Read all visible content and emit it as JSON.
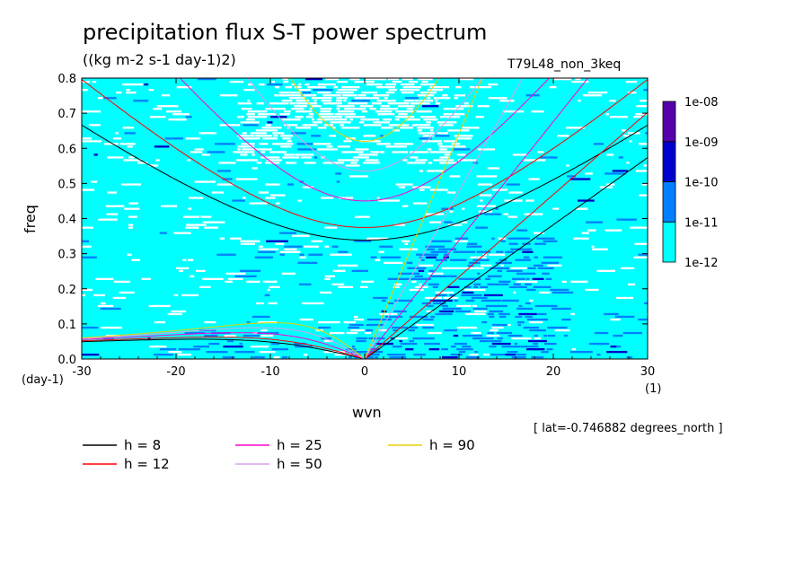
{
  "chart_data": {
    "type": "heatmap",
    "title": "precipitation flux S-T power spectrum",
    "units": "((kg m-2 s-1 day-1)2)",
    "run_name": "T79L48_non_3keq",
    "xlabel": "wvn",
    "ylabel": "freq",
    "x_unit": "(1)",
    "y_unit": "(day-1)",
    "xlim": [
      -30,
      30
    ],
    "ylim": [
      0,
      0.8
    ],
    "xticks": [
      "-30",
      "-20",
      "-10",
      "0",
      "10",
      "20",
      "30"
    ],
    "yticks": [
      "0.0",
      "0.1",
      "0.2",
      "0.3",
      "0.4",
      "0.5",
      "0.6",
      "0.7",
      "0.8"
    ],
    "annotation": "[ lat=-0.746882 degrees_north ]",
    "colorbar": {
      "labels": [
        "1e-12",
        "1e-11",
        "1e-10",
        "1e-09",
        "1e-08"
      ],
      "colors": [
        "#00ffff",
        "#0080ff",
        "#0000cc",
        "#5500aa"
      ]
    },
    "series": [
      {
        "name": "h =  8",
        "h": 8,
        "color": "#000000"
      },
      {
        "name": "h = 12",
        "h": 12,
        "color": "#ff0000"
      },
      {
        "name": "h = 25",
        "h": 25,
        "color": "#ff00cc"
      },
      {
        "name": "h = 50",
        "h": 50,
        "color": "#d8a0e8"
      },
      {
        "name": "h = 90",
        "h": 90,
        "color": "#e8d000"
      }
    ]
  }
}
